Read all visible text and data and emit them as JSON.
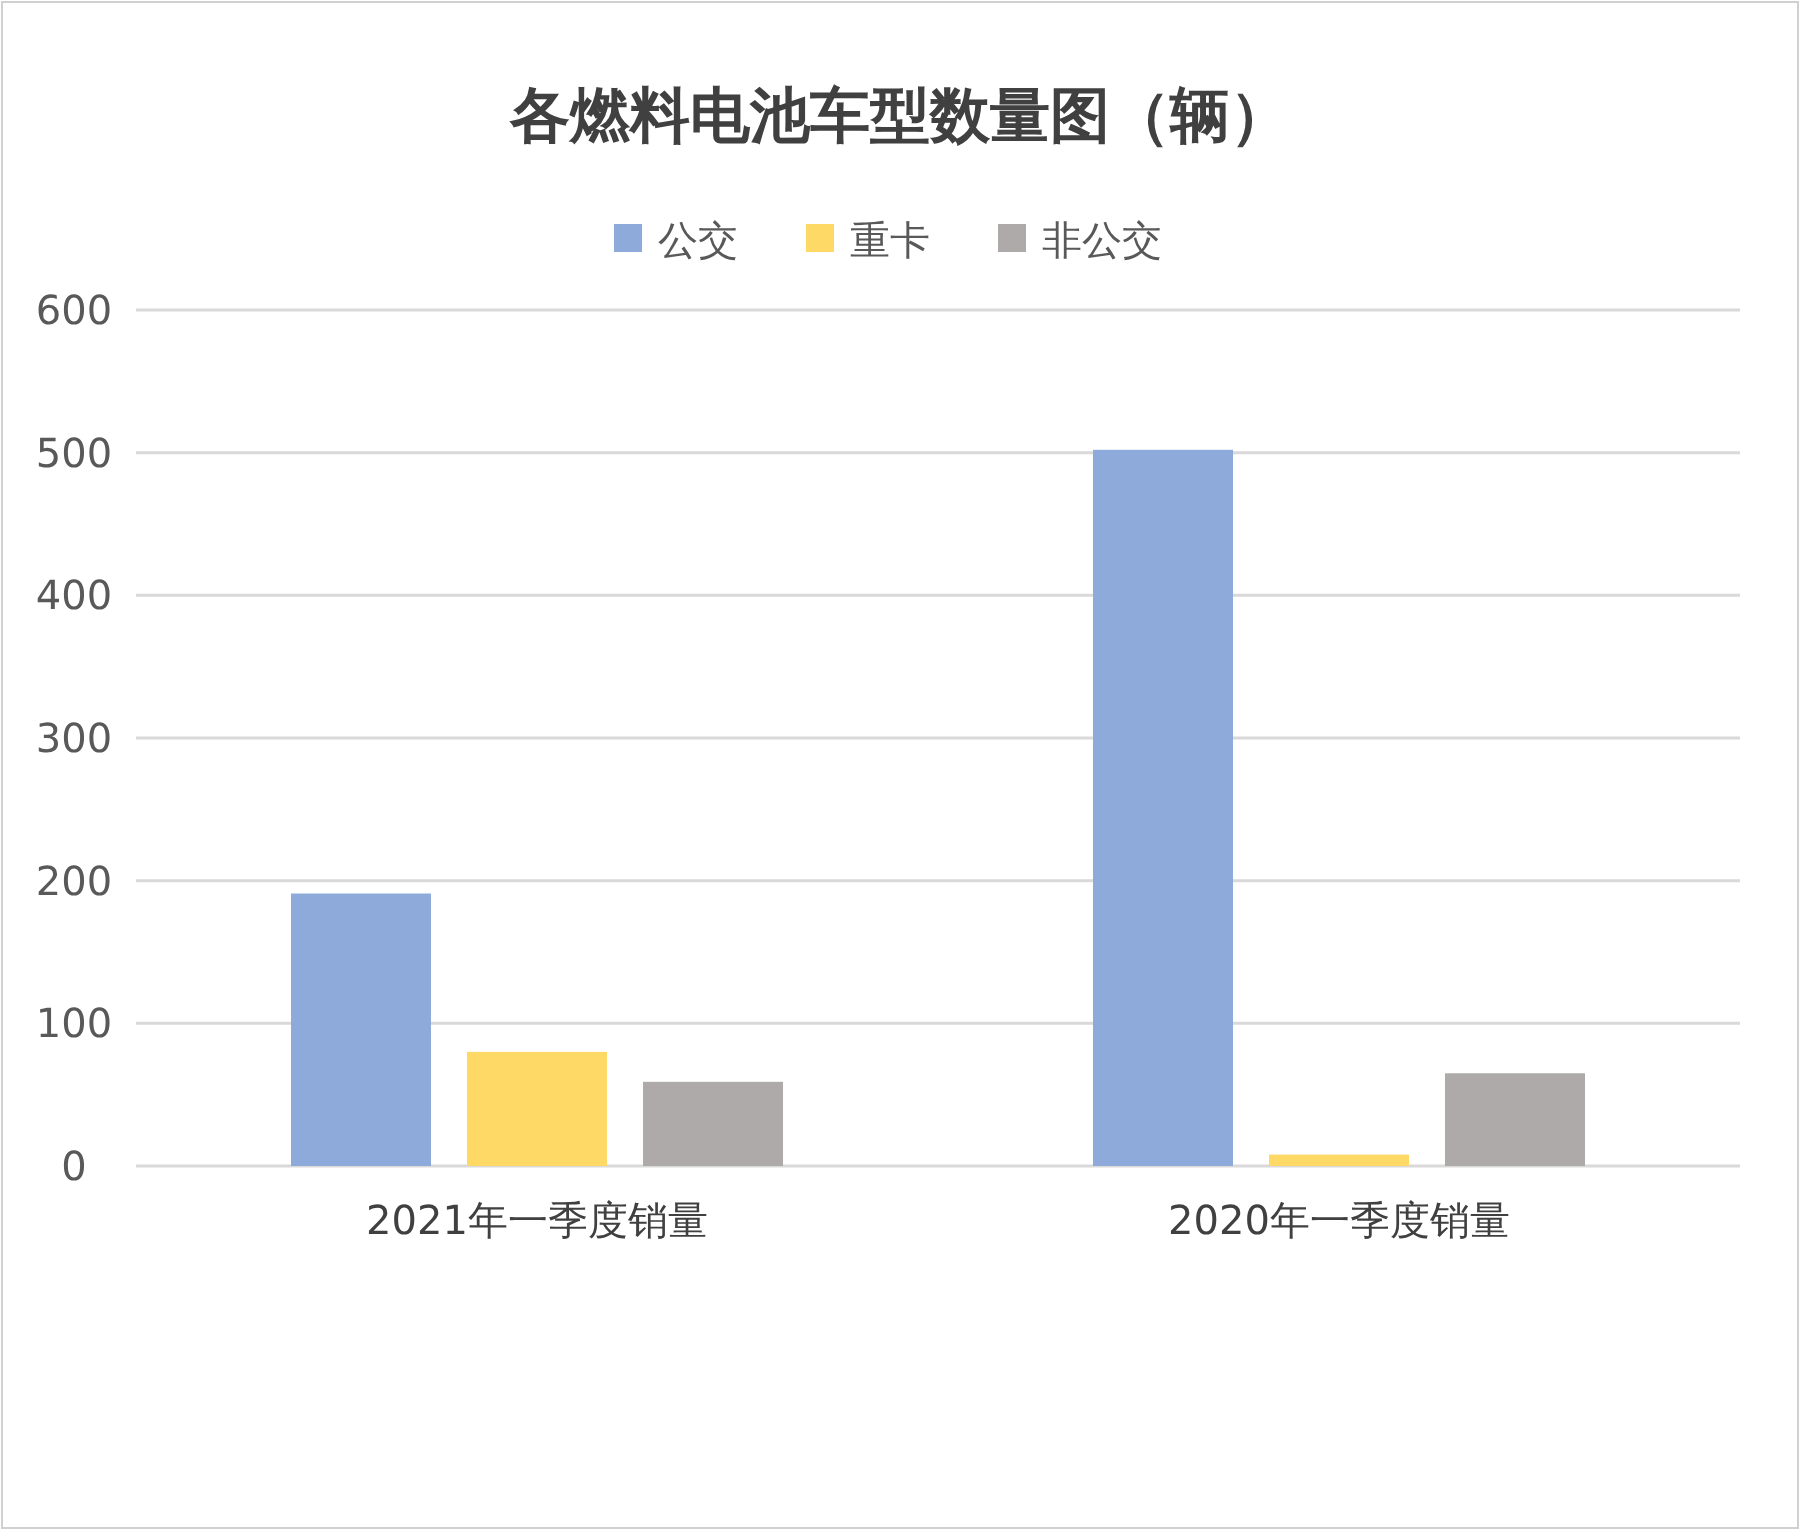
{
  "chart_data": {
    "type": "bar",
    "title": "各燃料电池车型数量图（辆）",
    "categories": [
      "2021年一季度销量",
      "2020年一季度销量"
    ],
    "series": [
      {
        "name": "公交",
        "color": "#8eaadb",
        "values": [
          191,
          502
        ]
      },
      {
        "name": "重卡",
        "color": "#ffd966",
        "values": [
          80,
          8
        ]
      },
      {
        "name": "非公交",
        "color": "#aeaaaa",
        "values": [
          59,
          65
        ]
      }
    ],
    "ylim": [
      0,
      600
    ],
    "yticks": [
      0,
      100,
      200,
      300,
      400,
      500,
      600
    ],
    "grid": "y",
    "legend": "top"
  }
}
